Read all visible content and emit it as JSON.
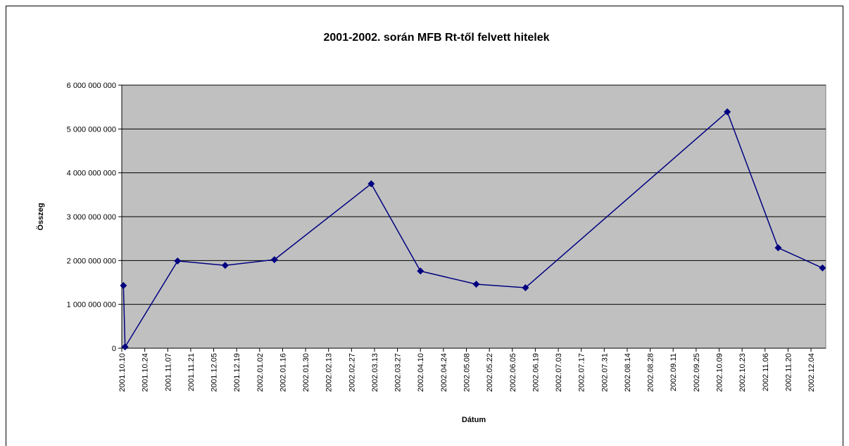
{
  "chart_data": {
    "type": "line",
    "title": "2001-2002. során MFB Rt-től felvett hitelek",
    "x_label": "Dátum",
    "y_label": "Összeg",
    "x": [
      "2001.10.11",
      "2001.10.12",
      "2001.11.13",
      "2001.12.12",
      "2002.01.11",
      "2002.03.11",
      "2002.04.10",
      "2002.05.14",
      "2002.06.13",
      "2002.10.14",
      "2002.11.14",
      "2002.12.11"
    ],
    "series": [
      {
        "name": "Összeg",
        "color": "#000080",
        "values": [
          1430000000,
          30000000,
          1990000000,
          1890000000,
          2020000000,
          3750000000,
          1760000000,
          1460000000,
          1380000000,
          5390000000,
          2290000000,
          1830000000
        ]
      }
    ],
    "xlim": [
      "2001.10.10",
      "2002.12.13"
    ],
    "xticks": [
      "2001.10.10",
      "2001.10.24",
      "2001.11.07",
      "2001.11.21",
      "2001.12.05",
      "2001.12.19",
      "2002.01.02",
      "2002.01.16",
      "2002.01.30",
      "2002.02.13",
      "2002.02.27",
      "2002.03.13",
      "2002.03.27",
      "2002.04.10",
      "2002.04.24",
      "2002.05.08",
      "2002.05.22",
      "2002.06.05",
      "2002.06.19",
      "2002.07.03",
      "2002.07.17",
      "2002.07.31",
      "2002.08.14",
      "2002.08.28",
      "2002.09.11",
      "2002.09.25",
      "2002.10.09",
      "2002.10.23",
      "2002.11.06",
      "2002.11.20",
      "2002.12.04"
    ],
    "ylim": [
      0,
      6000000000
    ],
    "yticks": [
      {
        "value": 0,
        "label": "0"
      },
      {
        "value": 1000000000,
        "label": "1 000 000 000"
      },
      {
        "value": 2000000000,
        "label": "2 000 000 000"
      },
      {
        "value": 3000000000,
        "label": "3 000 000 000"
      },
      {
        "value": 4000000000,
        "label": "4 000 000 000"
      },
      {
        "value": 5000000000,
        "label": "5 000 000 000"
      },
      {
        "value": 6000000000,
        "label": "6 000 000 000"
      }
    ],
    "grid": true,
    "plot_background": "#c0c0c0"
  }
}
